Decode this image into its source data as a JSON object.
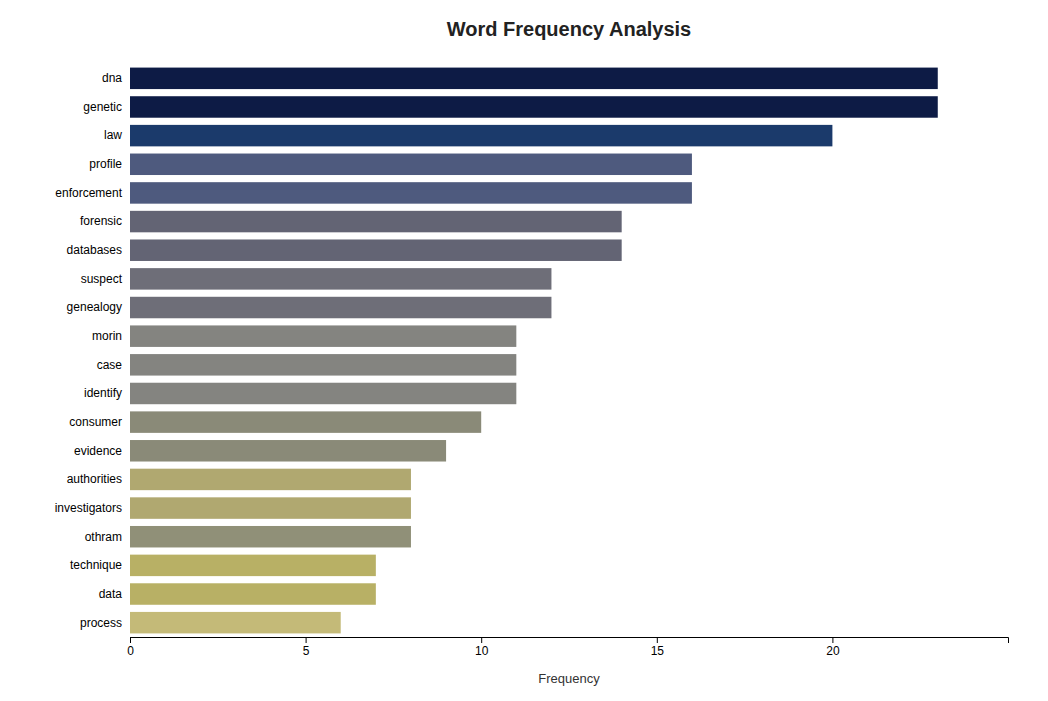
{
  "chart_data": {
    "type": "bar",
    "orientation": "horizontal",
    "title": "Word Frequency Analysis",
    "categories": [
      "dna",
      "genetic",
      "law",
      "profile",
      "enforcement",
      "forensic",
      "databases",
      "suspect",
      "genealogy",
      "morin",
      "case",
      "identify",
      "consumer",
      "evidence",
      "authorities",
      "investigators",
      "othram",
      "technique",
      "data",
      "process"
    ],
    "values": [
      23,
      23,
      20,
      16,
      16,
      14,
      14,
      12,
      12,
      11,
      11,
      11,
      10,
      9,
      8,
      8,
      8,
      7,
      7,
      6
    ],
    "colors": [
      "#0d1b45",
      "#0d1b45",
      "#1b3a6b",
      "#4e5a7e",
      "#4e5a7e",
      "#636474",
      "#636474",
      "#6e6e78",
      "#6e6e78",
      "#848480",
      "#848480",
      "#848480",
      "#8a8a78",
      "#8a8a78",
      "#b0a870",
      "#b0a870",
      "#909078",
      "#b8b065",
      "#b8b065",
      "#c4ba78"
    ],
    "xlabel": "Frequency",
    "xlim": [
      0,
      25
    ],
    "xticks": [
      0,
      5,
      10,
      15,
      20
    ],
    "grid": false
  }
}
